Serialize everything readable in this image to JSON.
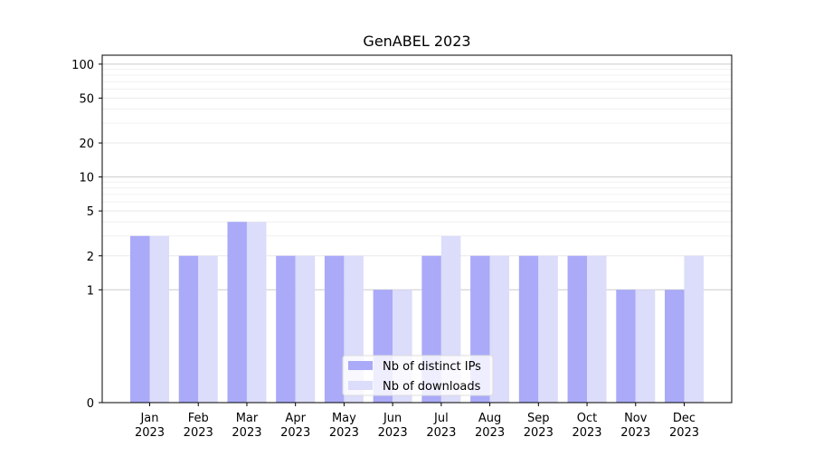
{
  "chart_data": {
    "type": "bar",
    "title": "GenABEL 2023",
    "xlabel": "",
    "ylabel": "",
    "y_scale": "symlog",
    "ylim": [
      0,
      120
    ],
    "y_ticks": [
      0,
      1,
      2,
      5,
      10,
      20,
      50,
      100
    ],
    "grid": true,
    "legend_position": "lower center",
    "categories": [
      [
        "Jan",
        "2023"
      ],
      [
        "Feb",
        "2023"
      ],
      [
        "Mar",
        "2023"
      ],
      [
        "Apr",
        "2023"
      ],
      [
        "May",
        "2023"
      ],
      [
        "Jun",
        "2023"
      ],
      [
        "Jul",
        "2023"
      ],
      [
        "Aug",
        "2023"
      ],
      [
        "Sep",
        "2023"
      ],
      [
        "Oct",
        "2023"
      ],
      [
        "Nov",
        "2023"
      ],
      [
        "Dec",
        "2023"
      ]
    ],
    "series": [
      {
        "name": "Nb of distinct IPs",
        "color": "#aaaaf8",
        "values": [
          3,
          2,
          4,
          2,
          2,
          1,
          2,
          2,
          2,
          2,
          1,
          1
        ]
      },
      {
        "name": "Nb of downloads",
        "color": "#dcdcfb",
        "values": [
          3,
          2,
          4,
          2,
          2,
          1,
          3,
          2,
          2,
          2,
          1,
          2
        ]
      }
    ]
  }
}
